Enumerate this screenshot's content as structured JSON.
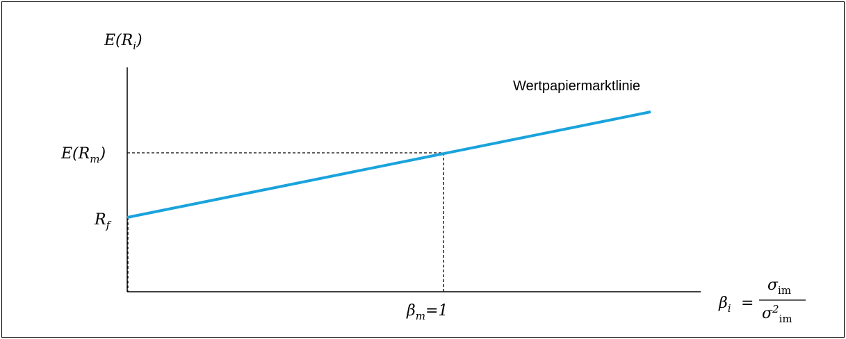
{
  "diagram": {
    "line_label": "Wertpapiermarktlinie",
    "line_color": "#1aa3dc",
    "y_axis_label": {
      "base": "E(R",
      "sub": "i",
      "close": ")"
    },
    "market_return_label": {
      "base": "E(R",
      "sub": "m",
      "close": ")"
    },
    "risk_free_label": {
      "base": "R",
      "sub": "f"
    },
    "market_beta_label": {
      "base": "β",
      "sub": "m",
      "rest": "=1"
    },
    "x_axis_label": {
      "lhs_base": "β",
      "lhs_sub": "i",
      "equals": "=",
      "numerator_base": "σ",
      "numerator_sub": "im",
      "denominator_base": "σ",
      "denominator_sup": "2",
      "denominator_sub": "im"
    }
  }
}
